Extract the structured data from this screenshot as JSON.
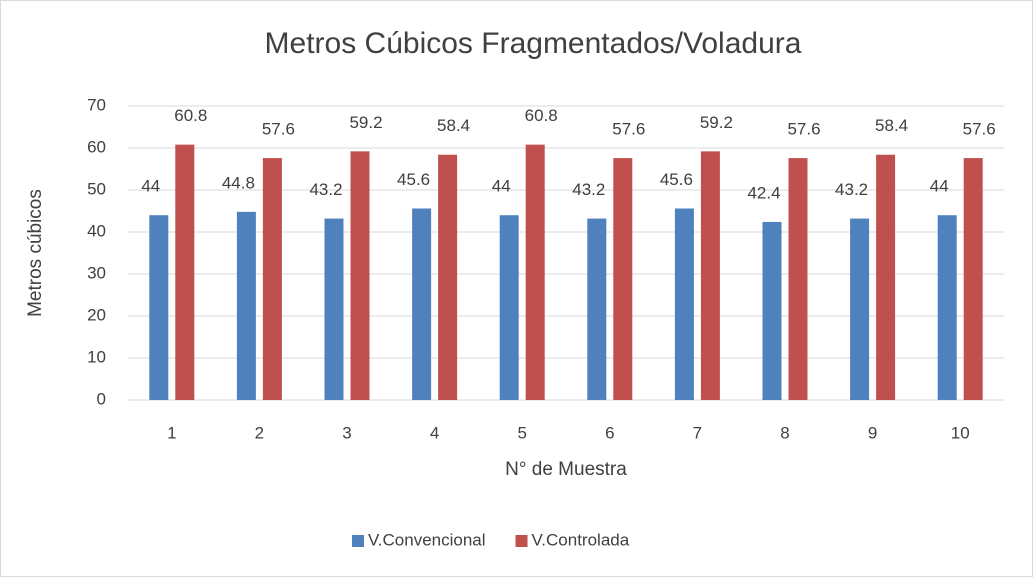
{
  "chart_data": {
    "type": "bar",
    "title": "Metros Cúbicos Fragmentados/Voladura",
    "x_label": "N° de Muestra",
    "y_label": "Metros cúbicos",
    "categories": [
      "1",
      "2",
      "3",
      "4",
      "5",
      "6",
      "7",
      "8",
      "9",
      "10"
    ],
    "series": [
      {
        "name": "V.Convencional",
        "color": "#4f81bd",
        "values": [
          44,
          44.8,
          43.2,
          45.6,
          44,
          43.2,
          45.6,
          42.4,
          43.2,
          44
        ]
      },
      {
        "name": "V.Controlada",
        "color": "#c0504d",
        "values": [
          60.8,
          57.6,
          59.2,
          58.4,
          60.8,
          57.6,
          59.2,
          57.6,
          58.4,
          57.6
        ]
      }
    ],
    "ylim": [
      0,
      70
    ],
    "yticks": [
      0,
      10,
      20,
      30,
      40,
      50,
      60,
      70
    ],
    "grid": true,
    "legend": "bottom"
  }
}
